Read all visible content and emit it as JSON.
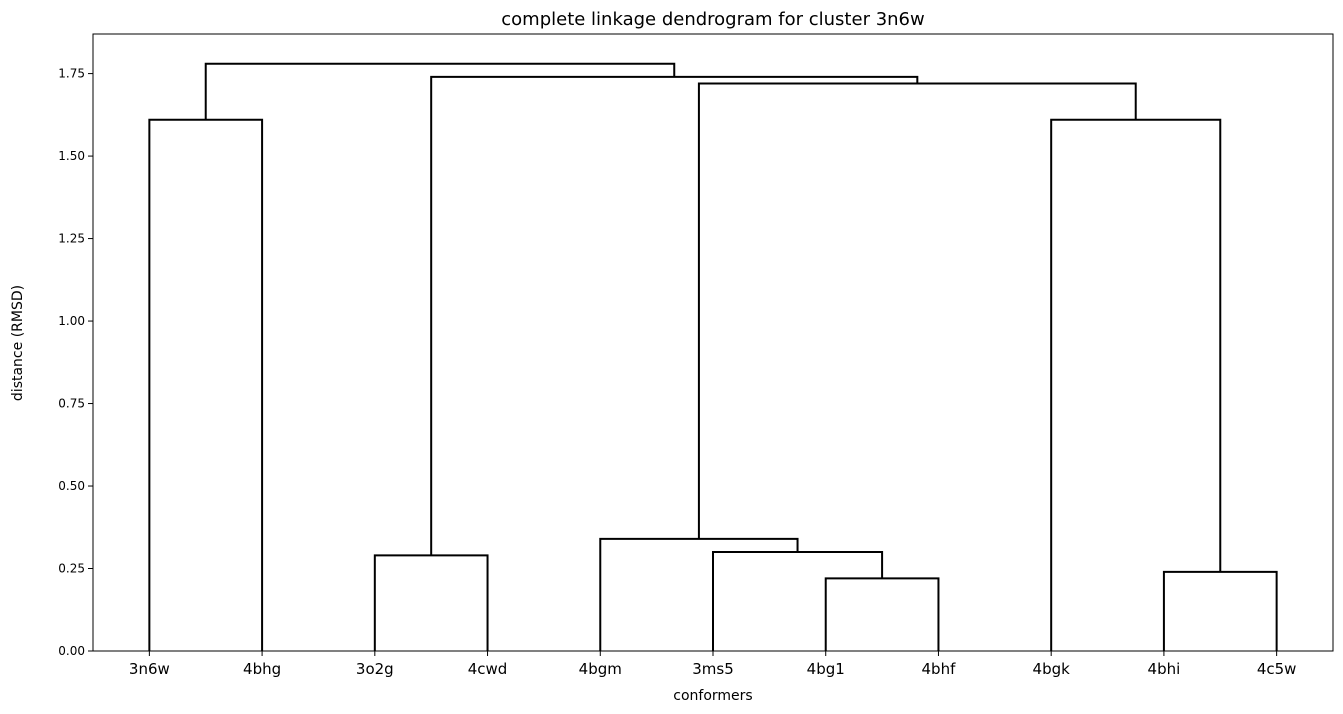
{
  "chart_data": {
    "type": "dendrogram",
    "title": "complete linkage dendrogram for cluster 3n6w",
    "xlabel": "conformers",
    "ylabel": "distance (RMSD)",
    "ylim": [
      0,
      1.87
    ],
    "yticks": [
      0.0,
      0.25,
      0.5,
      0.75,
      1.0,
      1.25,
      1.5,
      1.75
    ],
    "ytick_labels": [
      "0.00",
      "0.25",
      "0.50",
      "0.75",
      "1.00",
      "1.25",
      "1.50",
      "1.75"
    ],
    "leaves": [
      "3n6w",
      "4bhg",
      "3o2g",
      "4cwd",
      "4bgm",
      "3ms5",
      "4bg1",
      "4bhf",
      "4bgk",
      "4bhi",
      "4c5w"
    ],
    "merges": [
      {
        "left": "leaf:6",
        "right": "leaf:7",
        "height": 0.22
      },
      {
        "left": "leaf:9",
        "right": "leaf:10",
        "height": 0.24
      },
      {
        "left": "leaf:2",
        "right": "leaf:3",
        "height": 0.29
      },
      {
        "left": "leaf:5",
        "right": "merge:0",
        "height": 0.3
      },
      {
        "left": "leaf:4",
        "right": "merge:3",
        "height": 0.34
      },
      {
        "left": "leaf:0",
        "right": "leaf:1",
        "height": 1.61
      },
      {
        "left": "leaf:8",
        "right": "merge:1",
        "height": 1.61
      },
      {
        "left": "merge:4",
        "right": "merge:6",
        "height": 1.72
      },
      {
        "left": "merge:2",
        "right": "merge:7",
        "height": 1.74
      },
      {
        "left": "merge:5",
        "right": "merge:8",
        "height": 1.78
      }
    ],
    "line_color": "#000000",
    "grid": false,
    "legend": "none"
  }
}
